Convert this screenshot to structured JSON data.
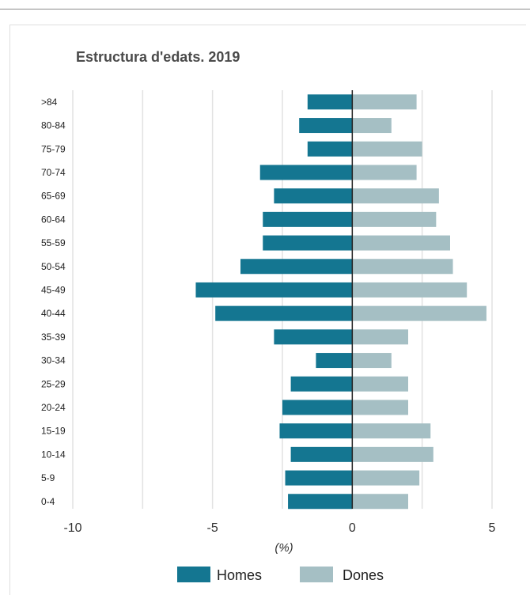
{
  "chart_data": {
    "type": "bar",
    "orientation": "horizontal-diverging",
    "title": "Estructura d'edats. 2019",
    "xlabel": "(%)",
    "xlim": [
      -10,
      5
    ],
    "xticks": [
      -10,
      -5,
      0,
      5
    ],
    "grid": true,
    "legend_position": "bottom",
    "categories": [
      ">84",
      "80-84",
      "75-79",
      "70-74",
      "65-69",
      "60-64",
      "55-59",
      "50-54",
      "45-49",
      "40-44",
      "35-39",
      "30-34",
      "25-29",
      "20-24",
      "15-19",
      "10-14",
      "5-9",
      "0-4"
    ],
    "series": [
      {
        "name": "Homes",
        "color": "#147691",
        "values": [
          -1.6,
          -1.9,
          -1.6,
          -3.3,
          -2.8,
          -3.2,
          -3.2,
          -4.0,
          -5.6,
          -4.9,
          -2.8,
          -1.3,
          -2.2,
          -2.5,
          -2.6,
          -2.2,
          -2.4,
          -2.3
        ]
      },
      {
        "name": "Dones",
        "color": "#a5bfc4",
        "values": [
          2.3,
          1.4,
          2.5,
          2.3,
          3.1,
          3.0,
          3.5,
          3.6,
          4.1,
          4.8,
          2.0,
          1.4,
          2.0,
          2.0,
          2.8,
          2.9,
          2.4,
          2.0
        ]
      }
    ]
  }
}
